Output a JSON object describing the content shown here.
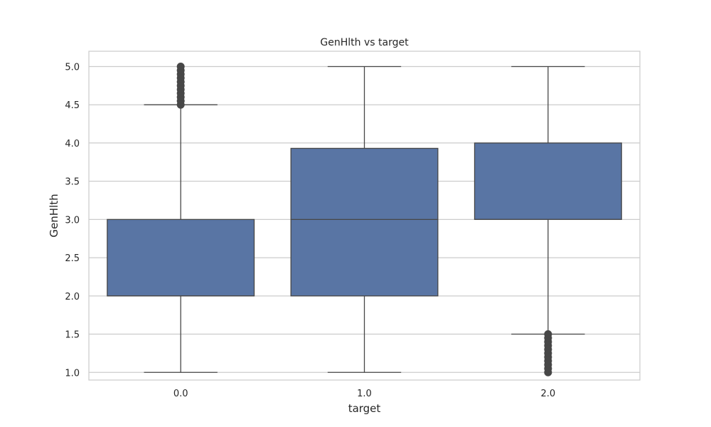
{
  "chart_data": {
    "type": "box",
    "title": "GenHlth vs target",
    "xlabel": "target",
    "ylabel": "GenHlth",
    "ylim": [
      0.9,
      5.2
    ],
    "yticks": [
      "1.0",
      "1.5",
      "2.0",
      "2.5",
      "3.0",
      "3.5",
      "4.0",
      "4.5",
      "5.0"
    ],
    "categories": [
      "0.0",
      "1.0",
      "2.0"
    ],
    "grid": true,
    "colors": {
      "box_fill": "#5975a4",
      "line": "#474747",
      "grid": "#cccccc",
      "frame": "#cccccc",
      "outlier": "#474747"
    },
    "boxes": [
      {
        "category": "0.0",
        "whisker_low": 1.0,
        "q1": 2.0,
        "median": 2.0,
        "q3": 3.0,
        "whisker_high": 4.5,
        "outliers": [
          4.5,
          4.55,
          4.6,
          4.65,
          4.7,
          4.75,
          4.8,
          4.85,
          4.9,
          4.95,
          5.0
        ]
      },
      {
        "category": "1.0",
        "whisker_low": 1.0,
        "q1": 2.0,
        "median": 3.0,
        "q3": 3.93,
        "whisker_high": 5.0,
        "outliers": []
      },
      {
        "category": "2.0",
        "whisker_low": 1.5,
        "q1": 3.0,
        "median": 3.0,
        "q3": 4.0,
        "whisker_high": 5.0,
        "outliers": [
          1.0,
          1.05,
          1.1,
          1.15,
          1.2,
          1.25,
          1.3,
          1.35,
          1.4,
          1.45,
          1.5
        ]
      }
    ]
  }
}
